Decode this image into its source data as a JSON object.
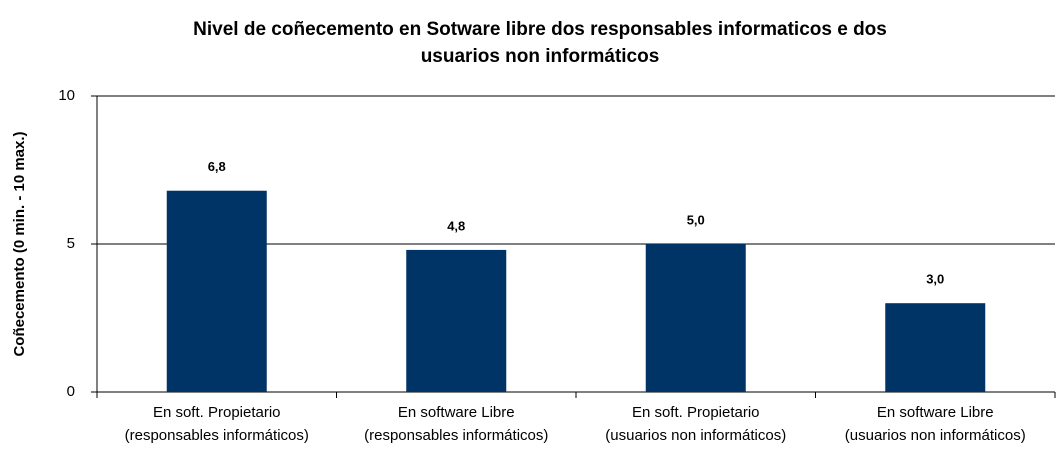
{
  "chart_data": {
    "type": "bar",
    "title": [
      "Nivel de coñecemento en Sotware libre dos responsables informaticos e dos",
      "usuarios non informáticos"
    ],
    "ylabel": "Coñecemento (0 min. - 10 max.)",
    "categories": [
      [
        "En soft. Propietario",
        "(responsables informáticos)"
      ],
      [
        "En  software  Libre",
        "(responsables informáticos)"
      ],
      [
        "En soft. Propietario",
        "(usuarios non informáticos)"
      ],
      [
        "En  software  Libre",
        "(usuarios non informáticos)"
      ]
    ],
    "values": [
      6.8,
      4.8,
      5.0,
      3.0
    ],
    "value_labels": [
      "6,8",
      "4,8",
      "5,0",
      "3,0"
    ],
    "color": "#003366",
    "ylim": [
      0,
      10
    ],
    "yticks": [
      0,
      5,
      10
    ],
    "grid": true
  }
}
